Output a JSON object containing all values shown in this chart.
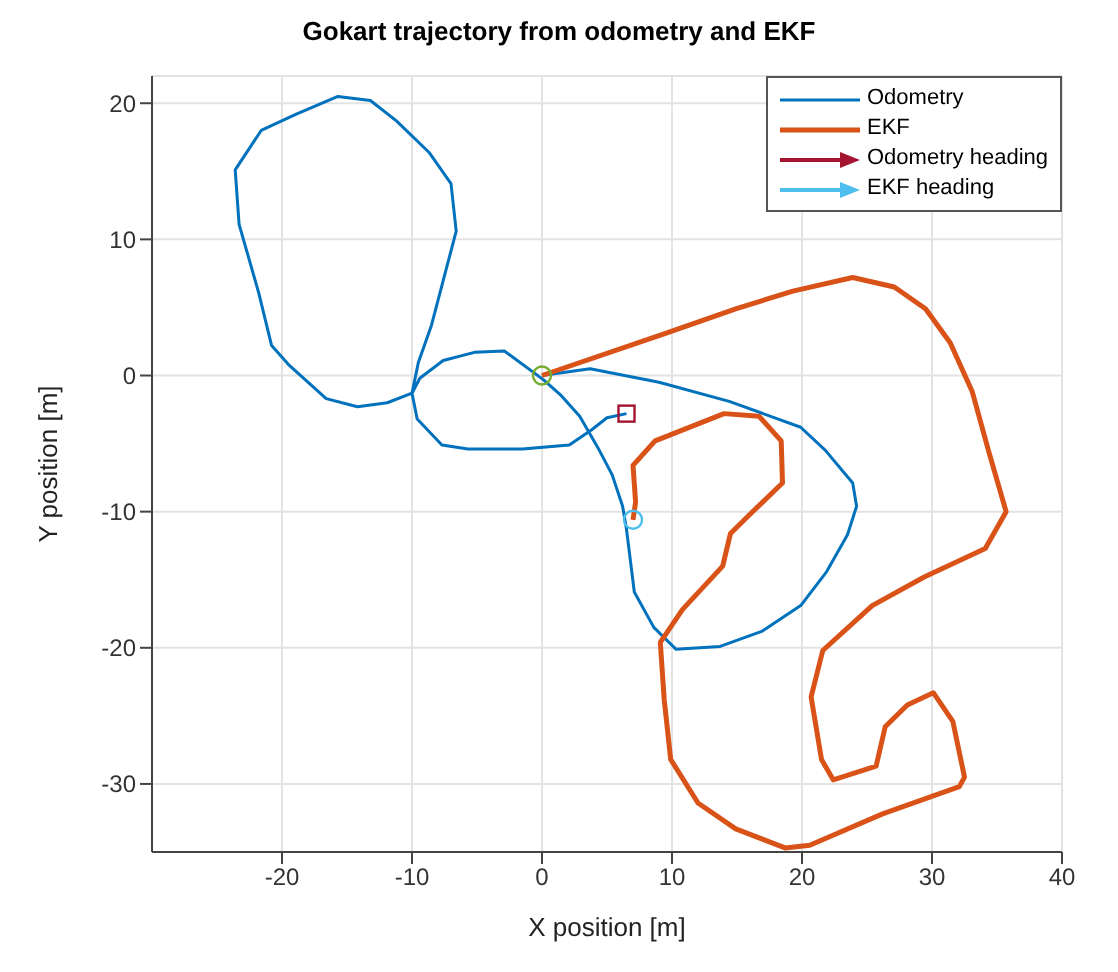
{
  "chart_data": {
    "type": "line",
    "title": "Gokart trajectory from odometry and EKF",
    "xlabel": "X position [m]",
    "ylabel": "Y position [m]",
    "xlim": [
      -30,
      40
    ],
    "ylim": [
      -35,
      22
    ],
    "xticks": [
      -20,
      -10,
      0,
      10,
      20,
      30,
      40
    ],
    "yticks": [
      -30,
      -20,
      -10,
      0,
      10,
      20
    ],
    "grid": true,
    "legend": "top right",
    "series": [
      {
        "name": "Odometry",
        "color": "#0072bd",
        "x": [
          0,
          3.7,
          9.0,
          14.4,
          19.9,
          21.8,
          23.9,
          24.2,
          23.5,
          21.9,
          19.9,
          16.9,
          13.7,
          10.3,
          8.6,
          7.1,
          6.8,
          6.5,
          6.2,
          5.4,
          4.3,
          2.9,
          1.4,
          0.1,
          -2.9,
          -5.2,
          -7.6,
          -9.4,
          -10.0,
          -11.9,
          -14.2,
          -16.6,
          -19.5,
          -20.8,
          -21.8,
          -23.3,
          -23.6,
          -21.6,
          -18.9,
          -15.7,
          -13.2,
          -11.2,
          -8.7,
          -7.0,
          -6.6,
          -7.4,
          -8.5,
          -9.5,
          -10.0,
          -9.6,
          -7.7,
          -5.7,
          -1.5,
          2.1,
          3.8,
          5.0,
          6.5
        ],
        "values": [
          0,
          0.5,
          -0.5,
          -1.9,
          -3.8,
          -5.5,
          -7.9,
          -9.6,
          -11.7,
          -14.4,
          -16.9,
          -18.8,
          -19.9,
          -20.1,
          -18.5,
          -15.9,
          -13.6,
          -11.3,
          -9.6,
          -7.3,
          -5.3,
          -3.0,
          -1.4,
          -0.3,
          1.8,
          1.7,
          1.1,
          -0.2,
          -1.3,
          -2.0,
          -2.3,
          -1.7,
          0.8,
          2.2,
          6.1,
          11.1,
          15.1,
          18.0,
          19.2,
          20.5,
          20.2,
          18.7,
          16.4,
          14.1,
          10.6,
          7.7,
          3.7,
          1.0,
          -1.3,
          -3.2,
          -5.1,
          -5.4,
          -5.4,
          -5.1,
          -4.0,
          -3.1,
          -2.8
        ]
      },
      {
        "name": "EKF",
        "color": "#d95319",
        "x": [
          0,
          9.5,
          14.9,
          19.3,
          23.9,
          27.1,
          29.5,
          31.4,
          33.1,
          34.4,
          35.7,
          34.1,
          29.4,
          25.4,
          21.6,
          20.7,
          21.5,
          22.4,
          25.7,
          26.4,
          28.1,
          30.1,
          31.6,
          32.5,
          32.1,
          26.2,
          20.6,
          18.7,
          14.9,
          12.0,
          9.9,
          9.4,
          9.1,
          10.8,
          13.9,
          14.5,
          16.1,
          18.5,
          18.4,
          16.7,
          14.0,
          8.7,
          7.0,
          7.2,
          7.0
        ],
        "values": [
          0,
          3.1,
          4.9,
          6.2,
          7.2,
          6.5,
          4.9,
          2.4,
          -1.2,
          -5.7,
          -10.0,
          -12.7,
          -14.8,
          -16.9,
          -20.2,
          -23.6,
          -28.2,
          -29.7,
          -28.7,
          -25.8,
          -24.2,
          -23.3,
          -25.4,
          -29.5,
          -30.2,
          -32.2,
          -34.5,
          -34.7,
          -33.3,
          -31.4,
          -28.2,
          -23.8,
          -19.6,
          -17.2,
          -14.0,
          -11.6,
          -10.1,
          -7.9,
          -4.8,
          -3.0,
          -2.8,
          -4.8,
          -6.6,
          -9.3,
          -10.6
        ]
      },
      {
        "name": "Odometry heading",
        "type": "scatter",
        "marker": "square",
        "color": "#a2142f",
        "x": [
          6.5
        ],
        "values": [
          -2.8
        ]
      },
      {
        "name": "EKF heading",
        "type": "scatter",
        "marker": "circle",
        "color": "#4dbeee",
        "x": [
          7.0
        ],
        "values": [
          -10.6
        ]
      },
      {
        "type": "scatter",
        "marker": "circle",
        "color": "#77ac30",
        "x": [
          0
        ],
        "values": [
          0
        ]
      }
    ]
  }
}
